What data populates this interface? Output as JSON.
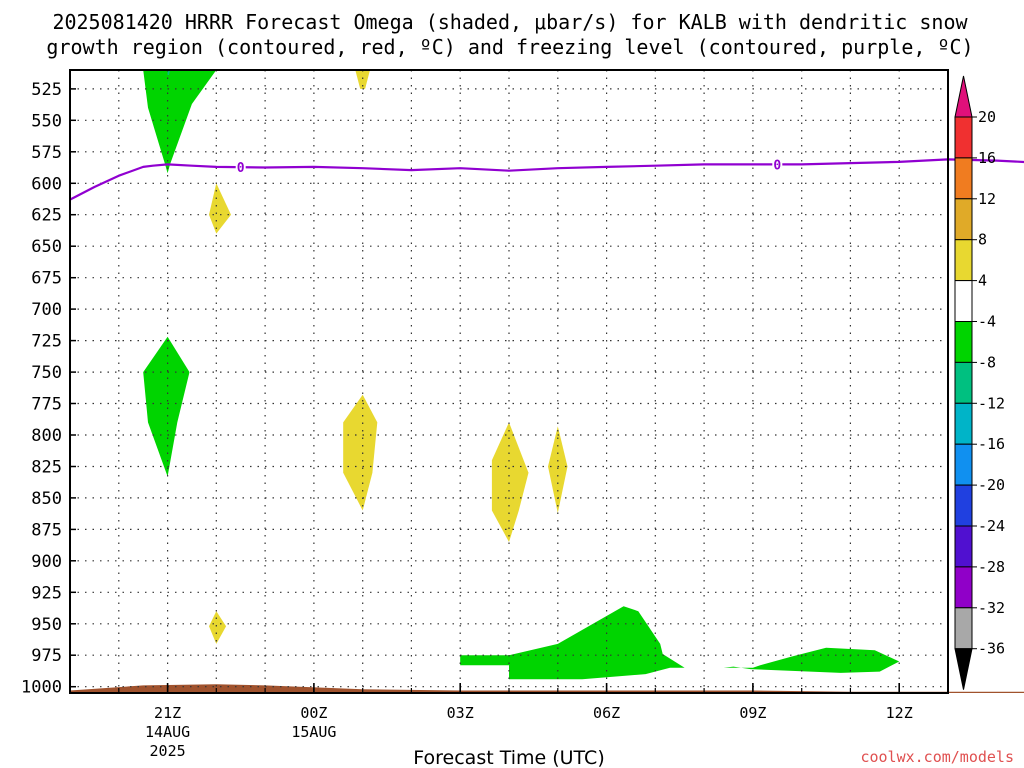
{
  "title": {
    "line1": "2025081420 HRRR Forecast Omega (shaded, μbar/s) for KALB with dendritic snow",
    "line2": "growth region (contoured, red, ºC) and freezing level (contoured, purple, ºC)"
  },
  "credit": "coolwx.com/models",
  "credit_color": "#e05050",
  "chart_data": {
    "type": "heatmap",
    "xlabel": "Forecast Time (UTC)",
    "ylabel": "",
    "x_range_hours": [
      -2,
      16
    ],
    "y_range_hpa": [
      1005,
      510
    ],
    "y_ticks": [
      525,
      550,
      575,
      600,
      625,
      650,
      675,
      700,
      725,
      750,
      775,
      800,
      825,
      850,
      875,
      900,
      925,
      950,
      975,
      1000
    ],
    "x_ticks": [
      {
        "h": 0,
        "label": "21Z",
        "sub1": "14AUG",
        "sub2": "2025"
      },
      {
        "h": 3,
        "label": "00Z",
        "sub1": "15AUG",
        "sub2": ""
      },
      {
        "h": 6,
        "label": "03Z",
        "sub1": "",
        "sub2": ""
      },
      {
        "h": 9,
        "label": "06Z",
        "sub1": "",
        "sub2": ""
      },
      {
        "h": 12,
        "label": "09Z",
        "sub1": "",
        "sub2": ""
      },
      {
        "h": 15,
        "label": "12Z",
        "sub1": "",
        "sub2": ""
      }
    ],
    "grid": true,
    "colorbar": {
      "labels": [
        "20",
        "16",
        "12",
        "8",
        "4",
        "-4",
        "-8",
        "-12",
        "-16",
        "-20",
        "-24",
        "-28",
        "-32",
        "-36"
      ],
      "top_arrow_color": "#e0107a",
      "bottom_arrow_color": "#000000",
      "segments": [
        {
          "low": 16,
          "high": 20,
          "color": "#f03030"
        },
        {
          "low": 12,
          "high": 16,
          "color": "#f07c20"
        },
        {
          "low": 8,
          "high": 12,
          "color": "#e0aa28"
        },
        {
          "low": 4,
          "high": 8,
          "color": "#e8d830"
        },
        {
          "low": -4,
          "high": 4,
          "color": "#ffffff"
        },
        {
          "low": -8,
          "high": -4,
          "color": "#00d400"
        },
        {
          "low": -12,
          "high": -8,
          "color": "#00c080"
        },
        {
          "low": -16,
          "high": -12,
          "color": "#00b4c8"
        },
        {
          "low": -20,
          "high": -16,
          "color": "#1090f0"
        },
        {
          "low": -24,
          "high": -20,
          "color": "#2040e0"
        },
        {
          "low": -28,
          "high": -24,
          "color": "#5010d0"
        },
        {
          "low": -32,
          "high": -28,
          "color": "#9000c8"
        },
        {
          "low": -36,
          "high": -32,
          "color": "#a8a8a8"
        }
      ]
    },
    "freezing_level": {
      "label": "0",
      "color": "#9000d0",
      "points": [
        [
          -2,
          613
        ],
        [
          -1.5,
          603
        ],
        [
          -1,
          594
        ],
        [
          -0.5,
          587
        ],
        [
          -0.3,
          586
        ],
        [
          0,
          585
        ],
        [
          0.5,
          586
        ],
        [
          1,
          587
        ],
        [
          2,
          587.5
        ],
        [
          3,
          587
        ],
        [
          4,
          588
        ],
        [
          5,
          589.5
        ],
        [
          6,
          588
        ],
        [
          7,
          590
        ],
        [
          8,
          588
        ],
        [
          9,
          587
        ],
        [
          10,
          586
        ],
        [
          11,
          585
        ],
        [
          12,
          585
        ],
        [
          13,
          585
        ],
        [
          14,
          584
        ],
        [
          15,
          583
        ],
        [
          16,
          581
        ],
        [
          17,
          582
        ],
        [
          18,
          584
        ]
      ],
      "label_positions": [
        [
          1.5,
          587
        ],
        [
          12.5,
          585
        ]
      ]
    },
    "omega_regions": [
      {
        "value": "-4 to -8",
        "color": "#00d400",
        "points": [
          [
            -0.5,
            510
          ],
          [
            1,
            510
          ],
          [
            0.5,
            537
          ],
          [
            0.05,
            585
          ],
          [
            0,
            592
          ],
          [
            -0.05,
            585
          ],
          [
            -0.4,
            540
          ]
        ]
      },
      {
        "value": "-8 to -12",
        "color": "#00c080",
        "points": [
          [
            0,
            510
          ],
          [
            0.05,
            510
          ],
          [
            0.03,
            514
          ],
          [
            0,
            514
          ]
        ]
      },
      {
        "value": "4 to 8",
        "color": "#e8d830",
        "points": [
          [
            3.85,
            510
          ],
          [
            4.15,
            510
          ],
          [
            4.05,
            525
          ],
          [
            3.95,
            525
          ]
        ]
      },
      {
        "value": "4 to 8",
        "color": "#e8d830",
        "points": [
          [
            1,
            600
          ],
          [
            1.3,
            625
          ],
          [
            1,
            640
          ],
          [
            0.85,
            625
          ]
        ]
      },
      {
        "value": "-4 to -8",
        "color": "#00d400",
        "points": [
          [
            0,
            722
          ],
          [
            0.45,
            750
          ],
          [
            0.2,
            790
          ],
          [
            0,
            833
          ],
          [
            -0.4,
            790
          ],
          [
            -0.5,
            750
          ]
        ]
      },
      {
        "value": "4 to 8",
        "color": "#e8d830",
        "points": [
          [
            4,
            768
          ],
          [
            4.3,
            790
          ],
          [
            4.2,
            830
          ],
          [
            4,
            860
          ],
          [
            3.6,
            830
          ],
          [
            3.6,
            790
          ]
        ]
      },
      {
        "value": "4 to 8",
        "color": "#e8d830",
        "points": [
          [
            7,
            790
          ],
          [
            7.4,
            830
          ],
          [
            7.2,
            860
          ],
          [
            7,
            885
          ],
          [
            6.65,
            860
          ],
          [
            6.65,
            820
          ]
        ]
      },
      {
        "value": "4 to 8",
        "color": "#e8d830",
        "points": [
          [
            8,
            793
          ],
          [
            8.2,
            825
          ],
          [
            8,
            862
          ],
          [
            7.8,
            825
          ]
        ]
      },
      {
        "value": "4 to 8",
        "color": "#e8d830",
        "points": [
          [
            1,
            940
          ],
          [
            1.2,
            952
          ],
          [
            1,
            966
          ],
          [
            0.85,
            952
          ]
        ]
      },
      {
        "value": "-4 to -8",
        "color": "#00d400",
        "points": [
          [
            6,
            975
          ],
          [
            7,
            975
          ],
          [
            8,
            966
          ],
          [
            9.35,
            936
          ],
          [
            9.65,
            940
          ],
          [
            10.1,
            966
          ],
          [
            10.15,
            974
          ],
          [
            10.6,
            985
          ],
          [
            12,
            985
          ],
          [
            12.15,
            983
          ],
          [
            12.8,
            976
          ],
          [
            13.5,
            969
          ],
          [
            14.5,
            971
          ],
          [
            15,
            980
          ],
          [
            14.6,
            988
          ],
          [
            13.8,
            989
          ],
          [
            11.95,
            986
          ],
          [
            11.6,
            984
          ],
          [
            11.4,
            985
          ],
          [
            10.3,
            985
          ],
          [
            9.8,
            990
          ],
          [
            8.5,
            994
          ],
          [
            7,
            994
          ],
          [
            7,
            983
          ],
          [
            6,
            983
          ]
        ]
      }
    ],
    "surface": {
      "color": "#a0522d",
      "points": [
        [
          -2,
          1003
        ],
        [
          -0.5,
          999
        ],
        [
          1,
          998
        ],
        [
          2,
          999
        ],
        [
          4,
          1002
        ],
        [
          6,
          1003
        ],
        [
          12,
          1003
        ],
        [
          14,
          1004
        ],
        [
          16,
          1004
        ],
        [
          18,
          1004
        ],
        [
          18,
          1005
        ],
        [
          -2,
          1005
        ]
      ]
    }
  }
}
